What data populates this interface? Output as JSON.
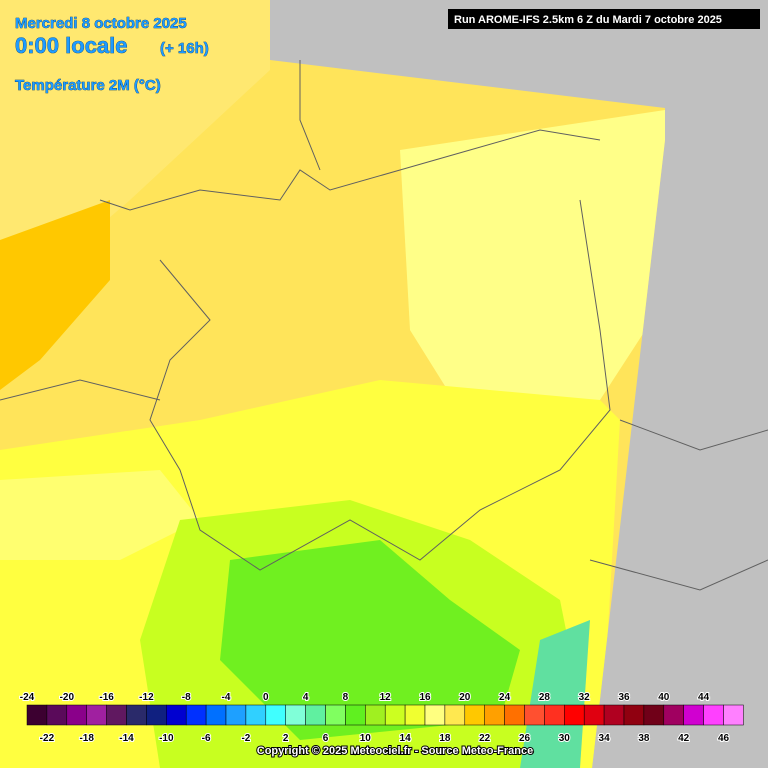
{
  "header": {
    "date": "Mercredi 8 octobre 2025",
    "time": "0:00 locale",
    "offset": "(+ 16h)",
    "parameter": "Température 2M (°C)",
    "run": "Run AROME-IFS 2.5km 6 Z du Mardi 7 octobre 2025"
  },
  "legend": {
    "ticks": [
      -24,
      -22,
      -20,
      -18,
      -16,
      -14,
      -12,
      -10,
      -8,
      -6,
      -4,
      -2,
      0,
      2,
      4,
      6,
      8,
      10,
      12,
      14,
      16,
      18,
      20,
      22,
      24,
      26,
      28,
      30,
      32,
      34,
      36,
      38,
      40,
      42,
      44,
      46
    ],
    "colors": [
      "#3c0030",
      "#5a0a5a",
      "#8a008a",
      "#a020a0",
      "#601860",
      "#2a2a6a",
      "#102080",
      "#0000d0",
      "#0030ff",
      "#0070ff",
      "#1ea0ff",
      "#30d0ff",
      "#40ffff",
      "#80ffd8",
      "#60f0a0",
      "#80ff60",
      "#60f020",
      "#a0f020",
      "#ccff20",
      "#f0ff30",
      "#ffff80",
      "#ffe850",
      "#ffc800",
      "#ffa000",
      "#ff7000",
      "#ff5030",
      "#ff3020",
      "#ff0000",
      "#e00010",
      "#b00020",
      "#900010",
      "#700018",
      "#a00060",
      "#d000d0",
      "#ff40ff",
      "#ff80ff"
    ]
  },
  "footer": {
    "copyright": "Copyright © 2025 Meteociel.fr - Source Meteo-France"
  }
}
